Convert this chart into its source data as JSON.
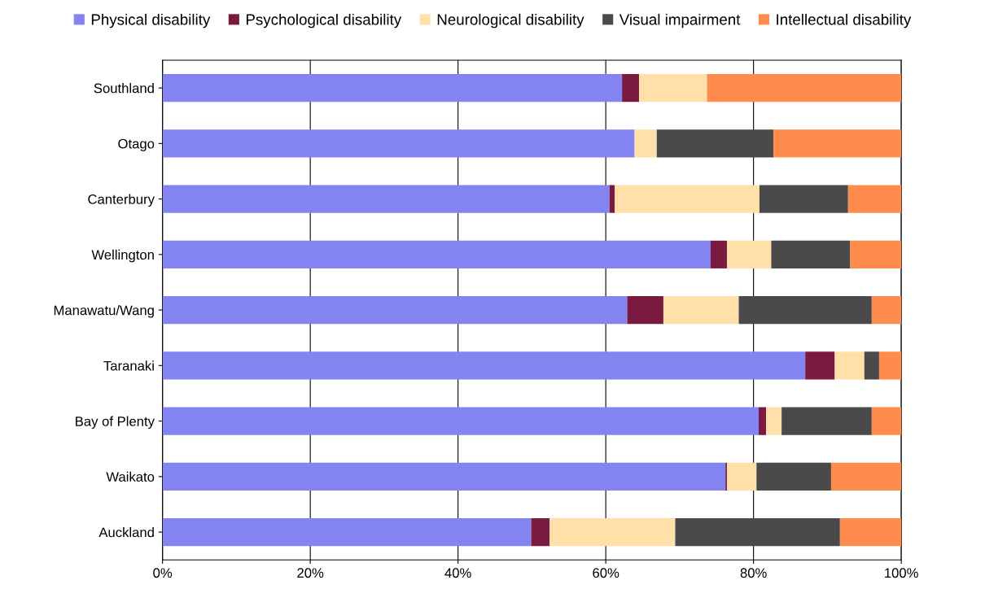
{
  "chart_data": {
    "type": "bar",
    "orientation": "horizontal",
    "stacked": true,
    "categories": [
      "Southland",
      "Otago",
      "Canterbury",
      "Wellington",
      "Manawatu/Wang",
      "Taranaki",
      "Bay of Plenty",
      "Waikato",
      "Auckland"
    ],
    "series": [
      {
        "name": "Physical disability",
        "color": "#8484f0",
        "values": [
          62.2,
          63.9,
          60.5,
          74.2,
          62.9,
          87.0,
          80.7,
          76.2,
          49.9
        ]
      },
      {
        "name": "Psychological disability",
        "color": "#7a1a40",
        "values": [
          2.3,
          0,
          0.7,
          2.2,
          4.9,
          4.0,
          1.0,
          0.2,
          2.5
        ]
      },
      {
        "name": "Neurological disability",
        "color": "#ffe0a8",
        "values": [
          9.2,
          3.0,
          19.6,
          6.0,
          10.2,
          4.0,
          2.1,
          4.0,
          17.0
        ]
      },
      {
        "name": "Visual impairment",
        "color": "#4a4a4a",
        "values": [
          0,
          15.8,
          12.0,
          10.7,
          18.0,
          2.0,
          12.2,
          10.1,
          22.3
        ]
      },
      {
        "name": "Intellectual disability",
        "color": "#ff8c4c",
        "values": [
          26.3,
          17.3,
          7.2,
          6.9,
          4.0,
          3.0,
          4.0,
          9.5,
          8.3
        ]
      }
    ],
    "xlim": [
      0,
      100
    ],
    "xticks": [
      {
        "value": 0,
        "label": "0%"
      },
      {
        "value": 20,
        "label": "20%"
      },
      {
        "value": 40,
        "label": "40%"
      },
      {
        "value": 60,
        "label": "60%"
      },
      {
        "value": 80,
        "label": "80%"
      },
      {
        "value": 100,
        "label": "100%"
      }
    ],
    "grid": "x",
    "legend": "top"
  }
}
